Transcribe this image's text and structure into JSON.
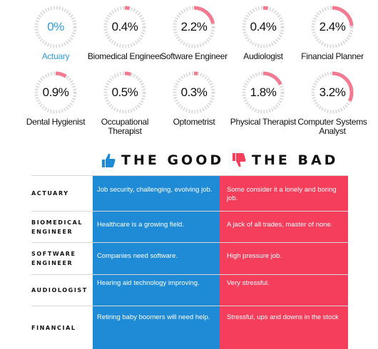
{
  "careers": [
    {
      "pct": "0%",
      "label": "Actuary",
      "value": 0.0,
      "highlight": true
    },
    {
      "pct": "0.4%",
      "label": "Biomedical Engineer",
      "value": 0.4,
      "highlight": false
    },
    {
      "pct": "2.2%",
      "label": "Software Engineer",
      "value": 2.2,
      "highlight": false
    },
    {
      "pct": "0.4%",
      "label": "Audiologist",
      "value": 0.4,
      "highlight": false
    },
    {
      "pct": "2.4%",
      "label": "Financial Planner",
      "value": 2.4,
      "highlight": false
    },
    {
      "pct": "0.9%",
      "label": "Dental Hygienist",
      "value": 0.9,
      "highlight": false
    },
    {
      "pct": "0.5%",
      "label": "Occupational Therapist",
      "value": 0.5,
      "highlight": false
    },
    {
      "pct": "0.3%",
      "label": "Optometrist",
      "value": 0.3,
      "highlight": false
    },
    {
      "pct": "1.8%",
      "label": "Physical Therapist",
      "value": 1.8,
      "highlight": false
    },
    {
      "pct": "3.2%",
      "label": "Computer Systems Analyst",
      "value": 3.2,
      "highlight": false
    }
  ],
  "headings": {
    "good": "THE GOOD",
    "bad": "THE BAD"
  },
  "rows": [
    {
      "name": "ACTUARY",
      "good": "Job security, challenging, evolving job.",
      "bad": "Some consider it a lonely and boring job."
    },
    {
      "name": "BIOMEDICAL ENGINEER",
      "good": "Healthcare is a growing field.",
      "bad": "A jack of all trades, master of none."
    },
    {
      "name": "SOFTWARE ENGINEER",
      "good": "Companies need software.",
      "bad": "High pressure job."
    },
    {
      "name": "AUDIOLOGIST",
      "good": "Hearing aid technology improving.",
      "bad": "Very stressful."
    },
    {
      "name": "FINANCIAL",
      "good": "Retiring baby boomers will need help.",
      "bad": "Stressful, ups and downs in the stock"
    }
  ],
  "colors": {
    "good": "#1f8ad6",
    "bad": "#f53e5c",
    "highlight": "#2f9de0",
    "ring_track": "#dcdcdc",
    "ring_fill": "#f47a92"
  },
  "icons": {
    "good": "thumbs-up-icon",
    "bad": "thumbs-down-icon"
  }
}
